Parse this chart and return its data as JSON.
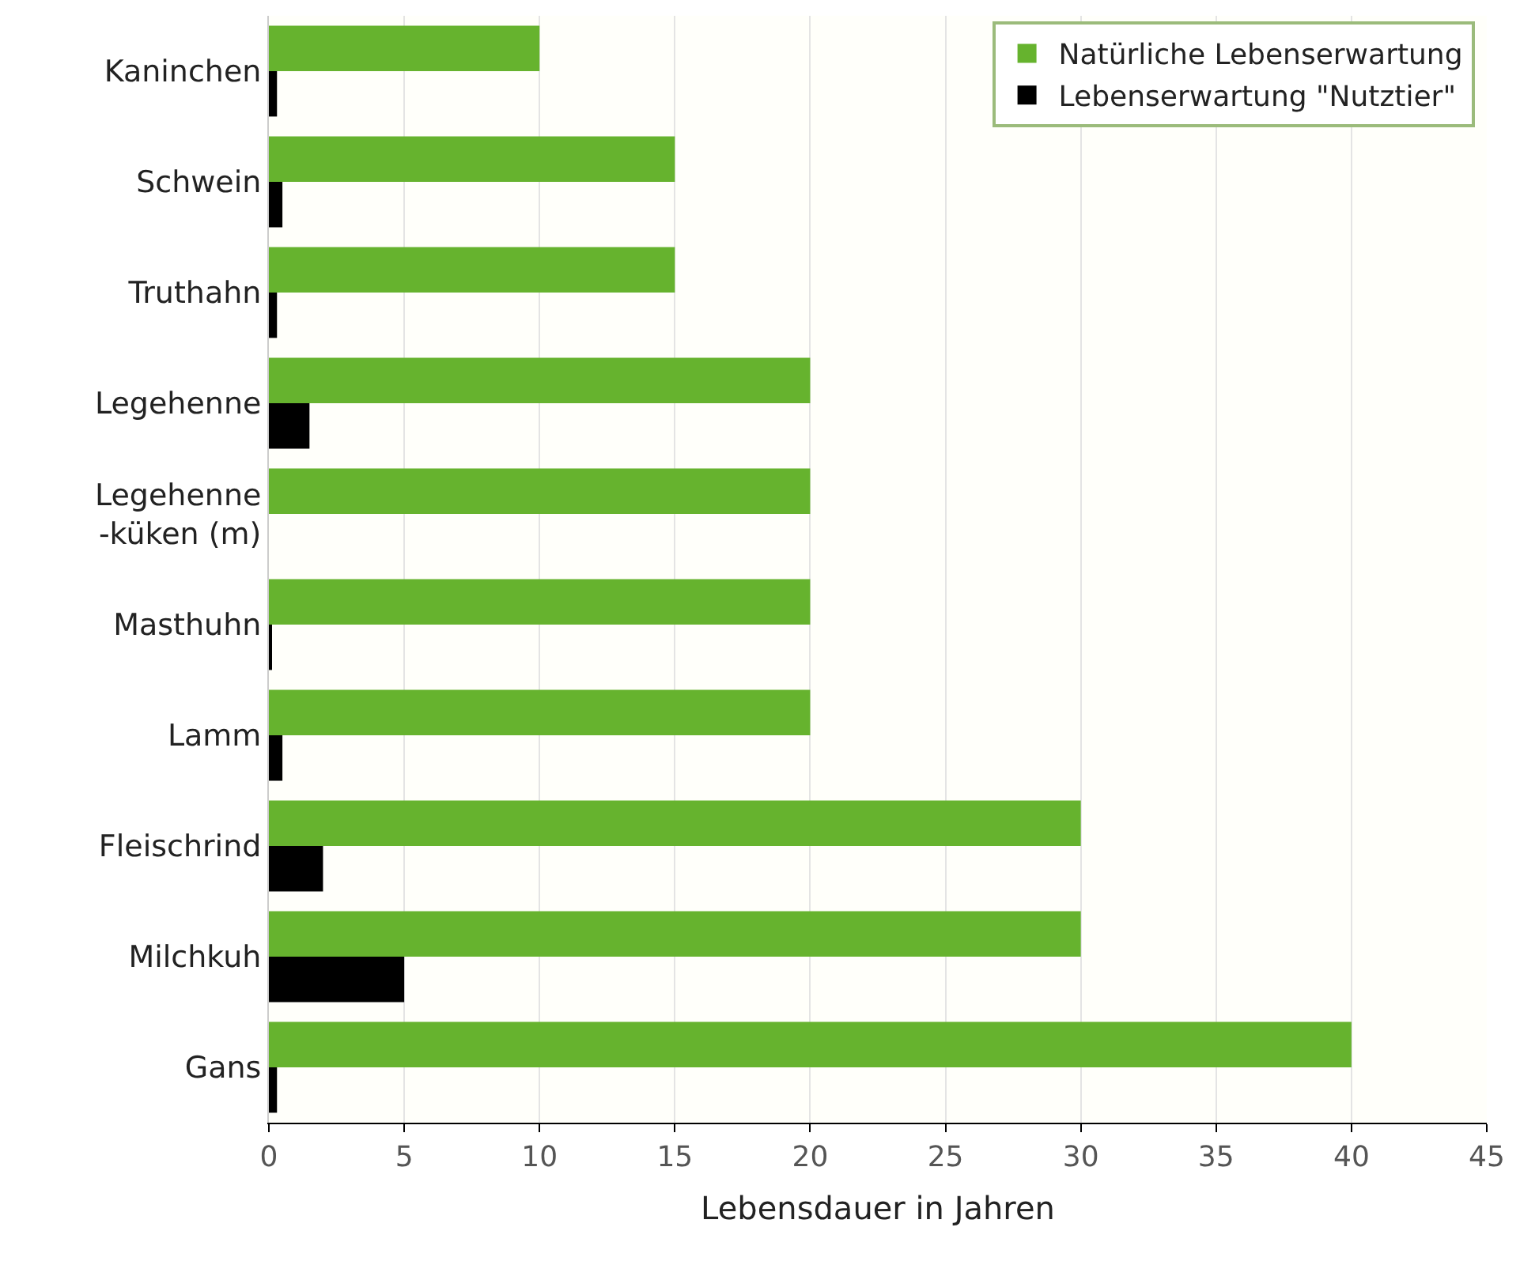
{
  "chart_data": {
    "type": "bar",
    "orientation": "horizontal",
    "xlabel": "Lebensdauer in Jahren",
    "categories": [
      "Kaninchen",
      "Schwein",
      "Truthahn",
      "Legehenne",
      "Legehenne\n-küken (m)",
      "Masthuhn",
      "Lamm",
      "Fleischrind",
      "Milchkuh",
      "Gans"
    ],
    "series": [
      {
        "name": "Natürliche Lebenserwartung",
        "color": "#66b32e",
        "values": [
          10,
          15,
          15,
          20,
          20,
          20,
          20,
          30,
          30,
          40
        ]
      },
      {
        "name": "Lebenserwartung \"Nutztier\"",
        "color": "#000000",
        "values": [
          0.3,
          0.5,
          0.3,
          1.5,
          null,
          0.1,
          0.5,
          2,
          5,
          0.3
        ]
      }
    ],
    "xlim": [
      0,
      45
    ],
    "xticks": [
      0,
      5,
      10,
      15,
      20,
      25,
      30,
      35,
      40,
      45
    ],
    "grid": "x",
    "legend": "top right"
  }
}
